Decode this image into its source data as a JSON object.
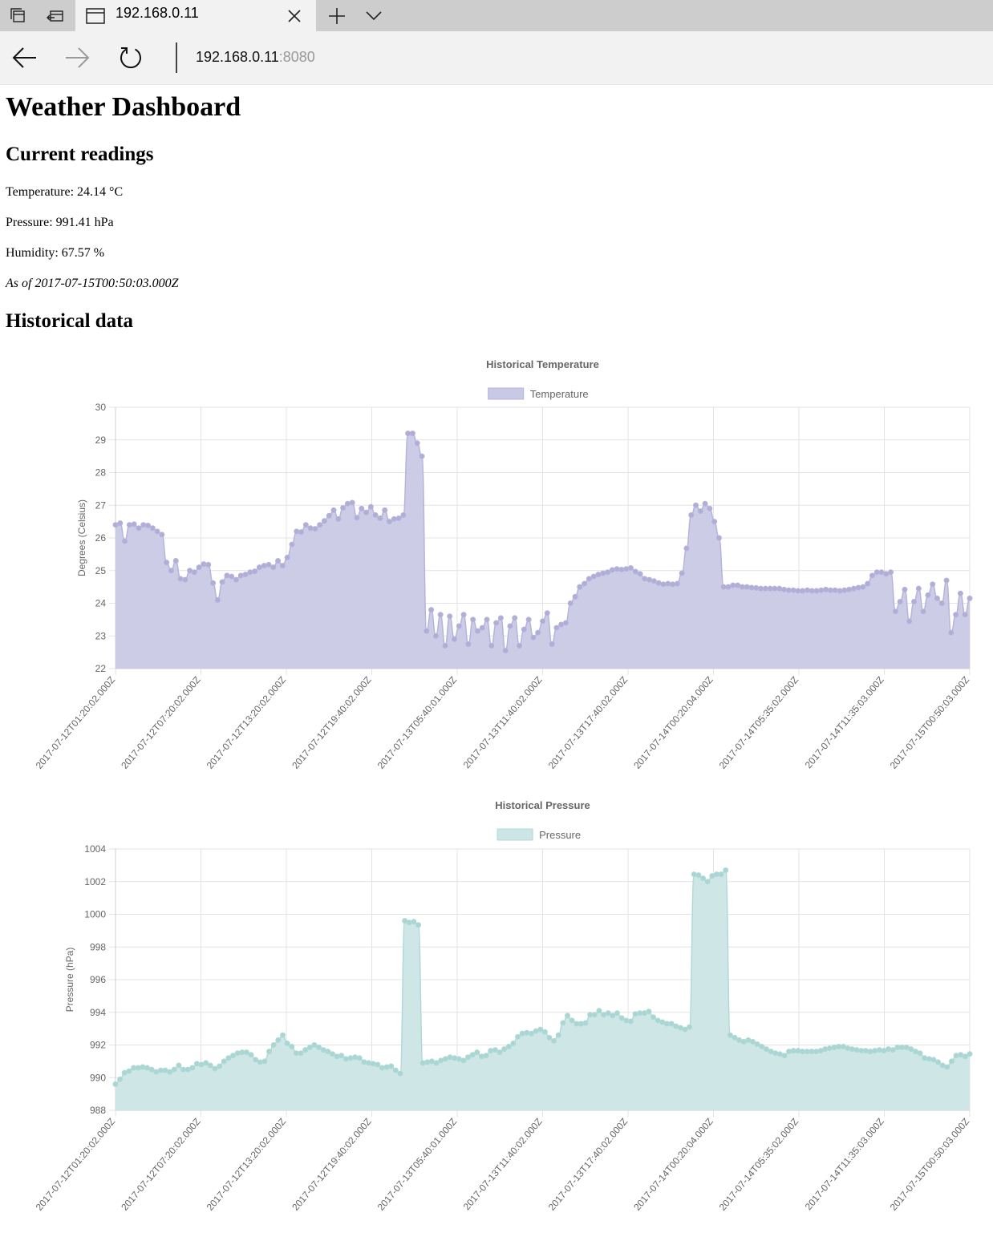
{
  "browser": {
    "tab_title": "192.168.0.11",
    "url_host": "192.168.0.11",
    "url_port": ":8080",
    "icons": [
      "tab-manager-icon",
      "set-aside-tabs-icon",
      "page-icon",
      "close-tab-icon",
      "new-tab-icon",
      "tab-list-icon",
      "back-arrow-icon",
      "forward-arrow-icon",
      "refresh-icon"
    ]
  },
  "page": {
    "title": "Weather Dashboard",
    "current_heading": "Current readings",
    "temperature_text": "Temperature: 24.14 °C",
    "pressure_text": "Pressure: 991.41 hPa",
    "humidity_text": "Humidity: 67.57 %",
    "as_of_text": "As of 2017-07-15T00:50:03.000Z",
    "historical_heading": "Historical data"
  },
  "chart_data": [
    {
      "type": "area",
      "title": "Historical Temperature",
      "legend": "Temperature",
      "legend_position": "top",
      "ylabel": "Degrees (Celsius)",
      "xlabel": "",
      "ylim": [
        22,
        30
      ],
      "yticks": [
        22,
        23,
        24,
        25,
        26,
        27,
        28,
        29,
        30
      ],
      "grid": true,
      "color_fill": "#cac9e5",
      "color_point": "#b0aed6",
      "color_line": "#b6b4da",
      "x_tick_labels": [
        "2017-07-12T01:20:02.000Z",
        "2017-07-12T07:20:02.000Z",
        "2017-07-12T13:20:02.000Z",
        "2017-07-12T19:40:02.000Z",
        "2017-07-13T05:40:01.000Z",
        "2017-07-13T11:40:02.000Z",
        "2017-07-13T17:40:02.000Z",
        "2017-07-14T00:20:04.000Z",
        "2017-07-14T05:35:02.000Z",
        "2017-07-14T11:35:03.000Z",
        "2017-07-15T00:50:03.000Z"
      ],
      "values": [
        26.4,
        26.45,
        25.9,
        26.4,
        26.42,
        26.3,
        26.4,
        26.38,
        26.3,
        26.2,
        26.1,
        25.25,
        25.0,
        25.3,
        24.75,
        24.72,
        25.0,
        24.95,
        25.1,
        25.2,
        25.18,
        24.62,
        24.1,
        24.65,
        24.85,
        24.82,
        24.72,
        24.85,
        24.88,
        24.95,
        24.98,
        25.1,
        25.15,
        25.18,
        25.1,
        25.3,
        25.15,
        25.4,
        25.8,
        26.2,
        26.18,
        26.4,
        26.3,
        26.28,
        26.4,
        26.52,
        26.68,
        26.85,
        26.58,
        26.92,
        27.05,
        27.08,
        26.62,
        26.9,
        26.78,
        26.95,
        26.7,
        26.6,
        26.85,
        26.5,
        26.58,
        26.6,
        26.7,
        29.2,
        29.2,
        28.9,
        28.5,
        23.15,
        23.8,
        23.0,
        23.65,
        22.7,
        23.6,
        22.9,
        23.3,
        23.65,
        22.75,
        23.5,
        23.15,
        23.25,
        23.5,
        22.7,
        23.4,
        23.55,
        22.55,
        23.3,
        23.55,
        22.7,
        23.2,
        23.5,
        22.95,
        23.1,
        23.45,
        23.7,
        22.75,
        23.25,
        23.35,
        23.4,
        24.0,
        24.2,
        24.5,
        24.6,
        24.75,
        24.82,
        24.88,
        24.92,
        24.95,
        25.02,
        25.05,
        25.03,
        25.05,
        25.08,
        24.97,
        24.9,
        24.75,
        24.72,
        24.68,
        24.62,
        24.58,
        24.6,
        24.58,
        24.6,
        24.92,
        25.68,
        26.7,
        27.0,
        26.82,
        27.05,
        26.9,
        26.5,
        26.0,
        24.5,
        24.5,
        24.55,
        24.55,
        24.5,
        24.5,
        24.48,
        24.47,
        24.45,
        24.45,
        24.45,
        24.45,
        24.45,
        24.42,
        24.4,
        24.4,
        24.38,
        24.38,
        24.4,
        24.38,
        24.38,
        24.4,
        24.42,
        24.4,
        24.4,
        24.38,
        24.4,
        24.42,
        24.45,
        24.48,
        24.5,
        24.6,
        24.85,
        24.95,
        24.95,
        24.9,
        24.95,
        23.75,
        24.05,
        24.42,
        23.45,
        24.05,
        24.45,
        23.75,
        24.25,
        24.58,
        24.15,
        24.0,
        24.7,
        23.1,
        23.65,
        24.3,
        23.65,
        24.15
      ]
    },
    {
      "type": "area",
      "title": "Historical Pressure",
      "legend": "Pressure",
      "legend_position": "top",
      "ylabel": "Pressure (hPa)",
      "xlabel": "",
      "ylim": [
        988,
        1004
      ],
      "yticks": [
        988,
        990,
        992,
        994,
        996,
        998,
        1000,
        1002,
        1004
      ],
      "grid": true,
      "color_fill": "#cbe6e5",
      "color_point": "#a9d6d3",
      "color_line": "#b0d9d6",
      "x_tick_labels": [
        "2017-07-12T01:20:02.000Z",
        "2017-07-12T07:20:02.000Z",
        "2017-07-12T13:20:02.000Z",
        "2017-07-12T19:40:02.000Z",
        "2017-07-13T05:40:01.000Z",
        "2017-07-13T11:40:02.000Z",
        "2017-07-13T17:40:02.000Z",
        "2017-07-14T00:20:04.000Z",
        "2017-07-14T05:35:02.000Z",
        "2017-07-14T11:35:03.000Z",
        "2017-07-15T00:50:03.000Z"
      ],
      "values": [
        989.6,
        989.9,
        990.3,
        990.4,
        990.6,
        990.6,
        990.65,
        990.6,
        990.5,
        990.35,
        990.45,
        990.45,
        990.35,
        990.5,
        990.75,
        990.5,
        990.5,
        990.6,
        990.85,
        990.8,
        990.9,
        990.75,
        990.55,
        990.7,
        991.0,
        991.2,
        991.35,
        991.5,
        991.55,
        991.55,
        991.4,
        991.1,
        990.95,
        991.0,
        991.6,
        992.0,
        992.3,
        992.6,
        992.1,
        991.9,
        991.5,
        991.5,
        991.7,
        991.85,
        992.0,
        991.85,
        991.7,
        991.6,
        991.45,
        991.3,
        991.35,
        991.15,
        991.2,
        991.25,
        991.2,
        990.95,
        990.9,
        990.85,
        990.8,
        990.6,
        990.65,
        990.7,
        990.45,
        990.25,
        999.6,
        999.5,
        999.55,
        999.35,
        990.9,
        990.95,
        991.0,
        990.9,
        991.05,
        991.15,
        991.25,
        991.2,
        991.15,
        991.05,
        991.25,
        991.4,
        991.55,
        991.3,
        991.35,
        991.65,
        991.7,
        991.55,
        991.75,
        991.9,
        992.1,
        992.5,
        992.7,
        992.75,
        992.7,
        992.85,
        992.95,
        992.8,
        992.45,
        992.25,
        992.6,
        993.35,
        993.8,
        993.5,
        993.3,
        993.3,
        993.35,
        993.85,
        993.85,
        994.1,
        993.85,
        993.95,
        993.8,
        993.95,
        993.65,
        993.5,
        993.45,
        993.9,
        993.95,
        993.95,
        994.05,
        993.7,
        993.5,
        993.4,
        993.3,
        993.3,
        993.15,
        993.05,
        992.95,
        993.1,
        1002.45,
        1002.4,
        1002.2,
        1002.0,
        1002.35,
        1002.45,
        1002.45,
        1002.7,
        992.6,
        992.45,
        992.3,
        992.2,
        992.3,
        992.2,
        992.05,
        991.9,
        991.75,
        991.6,
        991.5,
        991.45,
        991.35,
        991.6,
        991.65,
        991.65,
        991.6,
        991.6,
        991.6,
        991.6,
        991.65,
        991.75,
        991.8,
        991.85,
        991.9,
        991.9,
        991.8,
        991.75,
        991.7,
        991.65,
        991.65,
        991.6,
        991.65,
        991.7,
        991.65,
        991.75,
        991.7,
        991.85,
        991.85,
        991.85,
        991.75,
        991.6,
        991.5,
        991.2,
        991.15,
        991.1,
        990.95,
        990.75,
        990.65,
        991.0,
        991.35,
        991.4,
        991.3,
        991.45
      ]
    }
  ]
}
